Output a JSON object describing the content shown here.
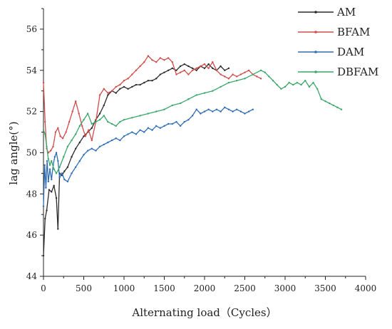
{
  "chart_data": {
    "type": "line",
    "title": "",
    "xlabel": "Alternating load（Cycles）",
    "ylabel": "lag angle(°)",
    "xlim": [
      0,
      4000
    ],
    "ylim": [
      44,
      57
    ],
    "xticks": [
      0,
      500,
      1000,
      1500,
      2000,
      2500,
      3000,
      3500,
      4000
    ],
    "yticks": [
      44,
      46,
      48,
      50,
      52,
      54,
      56
    ],
    "grid": false,
    "legend": "top-right",
    "series": [
      {
        "name": "AM",
        "color": "#2b2b2b",
        "x": [
          0,
          20,
          40,
          70,
          100,
          130,
          160,
          180,
          200,
          230,
          260,
          300,
          350,
          400,
          450,
          500,
          550,
          600,
          650,
          700,
          750,
          800,
          850,
          900,
          950,
          1000,
          1050,
          1100,
          1150,
          1200,
          1250,
          1300,
          1350,
          1400,
          1450,
          1500,
          1550,
          1600,
          1650,
          1700,
          1750,
          1800,
          1850,
          1900,
          1950,
          2000,
          2050,
          2100,
          2150,
          2200,
          2250,
          2300
        ],
        "values": [
          45,
          46.8,
          47.2,
          48.2,
          48.1,
          48.4,
          47.8,
          46.3,
          49.0,
          48.9,
          49.1,
          49.3,
          49.8,
          50.2,
          50.5,
          50.8,
          51.0,
          51.2,
          51.6,
          51.9,
          52.3,
          52.8,
          53.0,
          52.9,
          53.1,
          53.2,
          53.1,
          53.2,
          53.3,
          53.3,
          53.4,
          53.5,
          53.5,
          53.6,
          53.8,
          53.9,
          54.0,
          54.1,
          54.0,
          54.2,
          54.3,
          54.2,
          54.1,
          54.0,
          54.2,
          54.1,
          54.3,
          54.1,
          54.0,
          54.2,
          54.0,
          54.1
        ]
      },
      {
        "name": "BFAM",
        "color": "#d24c4c",
        "x": [
          0,
          20,
          40,
          60,
          90,
          120,
          150,
          180,
          210,
          240,
          280,
          320,
          360,
          400,
          440,
          480,
          520,
          560,
          600,
          650,
          700,
          750,
          800,
          850,
          900,
          950,
          1000,
          1050,
          1100,
          1150,
          1200,
          1250,
          1300,
          1350,
          1400,
          1450,
          1500,
          1550,
          1600,
          1650,
          1700,
          1750,
          1800,
          1850,
          1900,
          1950,
          2000,
          2050,
          2100,
          2150,
          2200,
          2250,
          2300,
          2350,
          2400,
          2450,
          2500,
          2550,
          2600,
          2650,
          2700
        ],
        "values": [
          53.4,
          51.5,
          50.2,
          50.0,
          50.1,
          50.3,
          51.0,
          51.2,
          50.8,
          50.7,
          51.0,
          51.5,
          52.0,
          52.5,
          51.9,
          51.3,
          50.8,
          51.1,
          50.6,
          51.5,
          52.8,
          53.1,
          52.9,
          53.0,
          53.2,
          53.3,
          53.5,
          53.6,
          53.8,
          54.0,
          54.2,
          54.4,
          54.7,
          54.5,
          54.4,
          54.6,
          54.5,
          54.6,
          54.4,
          53.8,
          53.9,
          54.0,
          53.8,
          54.0,
          54.1,
          54.2,
          54.3,
          54.1,
          54.4,
          54.0,
          53.8,
          53.7,
          53.6,
          53.8,
          53.7,
          53.8,
          53.9,
          54.0,
          53.8,
          53.7,
          53.6
        ]
      },
      {
        "name": "DAM",
        "color": "#2e6db5",
        "x": [
          0,
          15,
          30,
          45,
          60,
          80,
          100,
          120,
          140,
          160,
          180,
          200,
          230,
          260,
          300,
          350,
          400,
          450,
          500,
          550,
          600,
          650,
          700,
          750,
          800,
          850,
          900,
          950,
          1000,
          1050,
          1100,
          1150,
          1200,
          1250,
          1300,
          1350,
          1400,
          1450,
          1500,
          1550,
          1600,
          1650,
          1700,
          1750,
          1800,
          1850,
          1900,
          1950,
          2000,
          2050,
          2100,
          2150,
          2200,
          2250,
          2300,
          2350,
          2400,
          2450,
          2500,
          2550,
          2600
        ],
        "values": [
          47.4,
          49.4,
          48.3,
          49.6,
          48.6,
          49.2,
          48.7,
          49.4,
          49.8,
          50.0,
          49.6,
          48.8,
          49.0,
          48.7,
          48.6,
          49.0,
          49.3,
          49.6,
          49.9,
          50.1,
          50.2,
          50.1,
          50.3,
          50.4,
          50.5,
          50.6,
          50.7,
          50.6,
          50.8,
          50.9,
          51.0,
          50.9,
          51.1,
          51.0,
          51.2,
          51.1,
          51.3,
          51.2,
          51.3,
          51.4,
          51.4,
          51.5,
          51.3,
          51.5,
          51.6,
          51.8,
          52.1,
          51.9,
          52.0,
          52.1,
          52.0,
          52.1,
          52.0,
          52.2,
          52.1,
          52.0,
          52.1,
          52.0,
          51.9,
          52.0,
          52.1
        ]
      },
      {
        "name": "DBFAM",
        "color": "#3aa66a",
        "x": [
          0,
          20,
          40,
          60,
          80,
          100,
          130,
          160,
          200,
          250,
          300,
          350,
          400,
          450,
          500,
          550,
          600,
          650,
          700,
          750,
          800,
          850,
          900,
          950,
          1000,
          1100,
          1200,
          1300,
          1400,
          1500,
          1600,
          1700,
          1800,
          1900,
          2000,
          2100,
          2200,
          2300,
          2400,
          2500,
          2600,
          2700,
          2750,
          2800,
          2850,
          2900,
          2950,
          3000,
          3050,
          3100,
          3150,
          3200,
          3250,
          3300,
          3350,
          3400,
          3450,
          3500,
          3550,
          3600,
          3650,
          3700
        ],
        "values": [
          51.1,
          50.9,
          50.3,
          49.7,
          49.4,
          49.6,
          49.2,
          49.0,
          49.3,
          49.8,
          50.3,
          50.6,
          50.9,
          51.3,
          51.6,
          51.9,
          51.4,
          51.5,
          51.6,
          51.8,
          51.5,
          51.4,
          51.3,
          51.5,
          51.6,
          51.7,
          51.8,
          51.9,
          52.0,
          52.1,
          52.3,
          52.4,
          52.6,
          52.8,
          52.9,
          53.0,
          53.2,
          53.4,
          53.5,
          53.6,
          53.8,
          54.0,
          53.9,
          53.7,
          53.5,
          53.3,
          53.1,
          53.2,
          53.4,
          53.3,
          53.4,
          53.3,
          53.5,
          53.2,
          53.4,
          53.1,
          52.6,
          52.5,
          52.4,
          52.3,
          52.2,
          52.1
        ]
      }
    ]
  }
}
